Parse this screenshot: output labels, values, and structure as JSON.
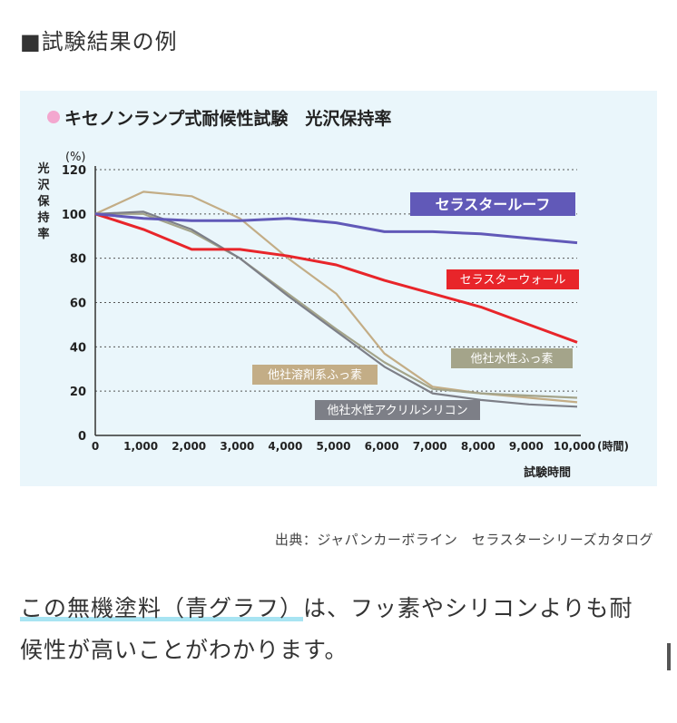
{
  "page": {
    "heading": "■試験結果の例",
    "source": "出典：ジャパンカーボライン　セラスターシリーズカタログ",
    "body_highlight": "この無機塗料（青グラフ）",
    "body_rest": "は、フッ素やシリコンよりも耐候性が高いことがわかります。"
  },
  "colors": {
    "chart_bg": "#eaf6fb",
    "title_dot": "#f3a7cf",
    "roof": "#6159b8",
    "wall": "#e8252a",
    "fluoro_solvent": "#c3ad86",
    "fluoro_water": "#a4a48a",
    "acryl_silicon": "#7d7f87",
    "highlight": "#a8e4f2"
  },
  "chart_data": {
    "type": "line",
    "title": "キセノンランプ式耐候性試験　光沢保持率",
    "ylabel": "光沢保持率",
    "yunit": "(%)",
    "xlabel": "試験時間",
    "xunit": "(時間)",
    "ylim": [
      0,
      120
    ],
    "xlim": [
      0,
      10000
    ],
    "yticks": [
      "0",
      "20",
      "40",
      "60",
      "80",
      "100",
      "120"
    ],
    "xticks": [
      "0",
      "1,000",
      "2,000",
      "3,000",
      "4,000",
      "5,000",
      "6,000",
      "7,000",
      "8,000",
      "9,000",
      "10,000"
    ],
    "grid": true,
    "series": [
      {
        "name": "他社溶剤系ふっ素",
        "key": "fluoro_solvent",
        "x": [
          0,
          1000,
          2000,
          3000,
          4000,
          5000,
          6000,
          7000,
          8000,
          9000,
          10000
        ],
        "y": [
          100,
          110,
          108,
          98,
          80,
          64,
          37,
          22,
          19,
          17,
          15
        ]
      },
      {
        "name": "他社水性ふっ素",
        "key": "fluoro_water",
        "x": [
          0,
          1000,
          2000,
          3000,
          4000,
          5000,
          6000,
          7000,
          8000,
          9000,
          10000
        ],
        "y": [
          100,
          100,
          92,
          80,
          64,
          48,
          33,
          21,
          19,
          18,
          17
        ]
      },
      {
        "name": "他社水性アクリルシリコン",
        "key": "acryl_silicon",
        "x": [
          0,
          1000,
          2000,
          3000,
          4000,
          5000,
          6000,
          7000,
          8000,
          9000,
          10000
        ],
        "y": [
          100,
          101,
          93,
          80,
          63,
          47,
          31,
          19,
          16,
          14,
          13
        ]
      },
      {
        "name": "セラスターウォール",
        "key": "wall",
        "x": [
          0,
          1000,
          2000,
          3000,
          4000,
          5000,
          6000,
          7000,
          8000,
          9000,
          10000
        ],
        "y": [
          100,
          93,
          84,
          84,
          81,
          77,
          70,
          64,
          58,
          50,
          42
        ]
      },
      {
        "name": "セラスタールーフ",
        "key": "roof",
        "x": [
          0,
          1000,
          2000,
          3000,
          4000,
          5000,
          6000,
          7000,
          8000,
          9000,
          10000
        ],
        "y": [
          100,
          98,
          97,
          97,
          98,
          96,
          92,
          92,
          91,
          89,
          87
        ]
      }
    ]
  }
}
